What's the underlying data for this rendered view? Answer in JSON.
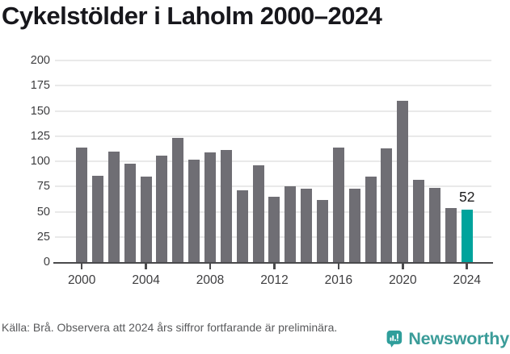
{
  "title": "Cykelstölder i Laholm 2000–2024",
  "chart_data": {
    "type": "bar",
    "x": [
      2000,
      2001,
      2002,
      2003,
      2004,
      2005,
      2006,
      2007,
      2008,
      2009,
      2010,
      2011,
      2012,
      2013,
      2014,
      2015,
      2016,
      2017,
      2018,
      2019,
      2020,
      2021,
      2022,
      2023,
      2024
    ],
    "values": [
      114,
      86,
      110,
      98,
      85,
      106,
      123,
      102,
      109,
      111,
      71,
      96,
      65,
      75,
      73,
      62,
      114,
      73,
      85,
      113,
      160,
      82,
      74,
      54,
      52
    ],
    "title": "Cykelstölder i Laholm 2000–2024",
    "xlabel": "",
    "ylabel": "",
    "ylim": [
      0,
      200
    ],
    "y_ticks": [
      0,
      25,
      50,
      75,
      100,
      125,
      150,
      175,
      200
    ],
    "x_tick_labels": [
      "2000",
      "2004",
      "2008",
      "2012",
      "2016",
      "2020",
      "2024"
    ],
    "grid": true,
    "legend": false,
    "bar_color": "#6f6e74",
    "highlight_index": 24,
    "highlight_color": "#00a39c",
    "highlight_value_label": "52"
  },
  "footer": {
    "source_text": "Källa: Brå. Observera att 2024 års siffror fortfarande är preliminära."
  },
  "branding": {
    "logo_icon": "newsworthy-speech-bubble-barchart-icon",
    "logo_text": "Newsworthy",
    "logo_color": "#3b9c99"
  }
}
